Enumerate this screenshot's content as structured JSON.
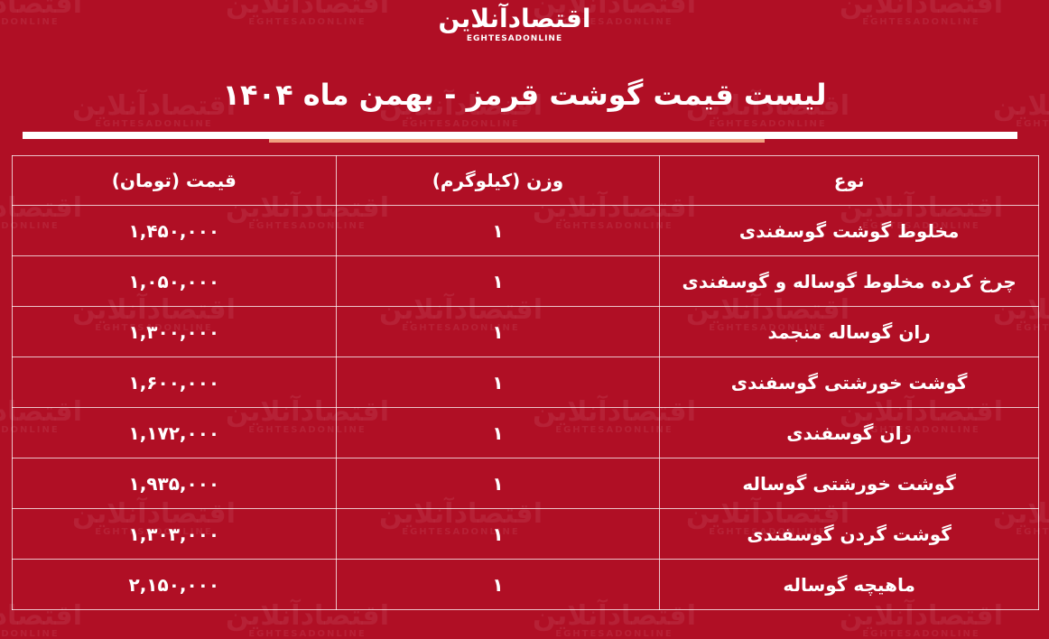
{
  "logo": {
    "persian": "اقتصادآنلاین",
    "latin": "EGHTESADONLINE"
  },
  "title": "لیست قیمت گوشت قرمز - بهمن ماه ۱۴۰۴",
  "colors": {
    "background": "#b00f25",
    "rule": "#ffffff",
    "accent_rule": "#f0a080"
  },
  "table": {
    "headers": [
      "نوع",
      "وزن (کیلوگرم)",
      "قیمت (تومان)"
    ],
    "rows": [
      {
        "type": "مخلوط گوشت گوسفندی",
        "weight": "۱",
        "price": "۱,۴۵۰,۰۰۰"
      },
      {
        "type": "چرخ کرده مخلوط گوساله و گوسفندی",
        "weight": "۱",
        "price": "۱,۰۵۰,۰۰۰"
      },
      {
        "type": "ران گوساله منجمد",
        "weight": "۱",
        "price": "۱,۳۰۰,۰۰۰"
      },
      {
        "type": "گوشت خورشتی گوسفندی",
        "weight": "۱",
        "price": "۱,۶۰۰,۰۰۰"
      },
      {
        "type": "ران گوسفندی",
        "weight": "۱",
        "price": "۱,۱۷۲,۰۰۰"
      },
      {
        "type": "گوشت خورشتی گوساله",
        "weight": "۱",
        "price": "۱,۹۳۵,۰۰۰"
      },
      {
        "type": "گوشت گردن گوسفندی",
        "weight": "۱",
        "price": "۱,۳۰۳,۰۰۰"
      },
      {
        "type": "ماهیچه گوساله",
        "weight": "۱",
        "price": "۲,۱۵۰,۰۰۰"
      }
    ]
  }
}
